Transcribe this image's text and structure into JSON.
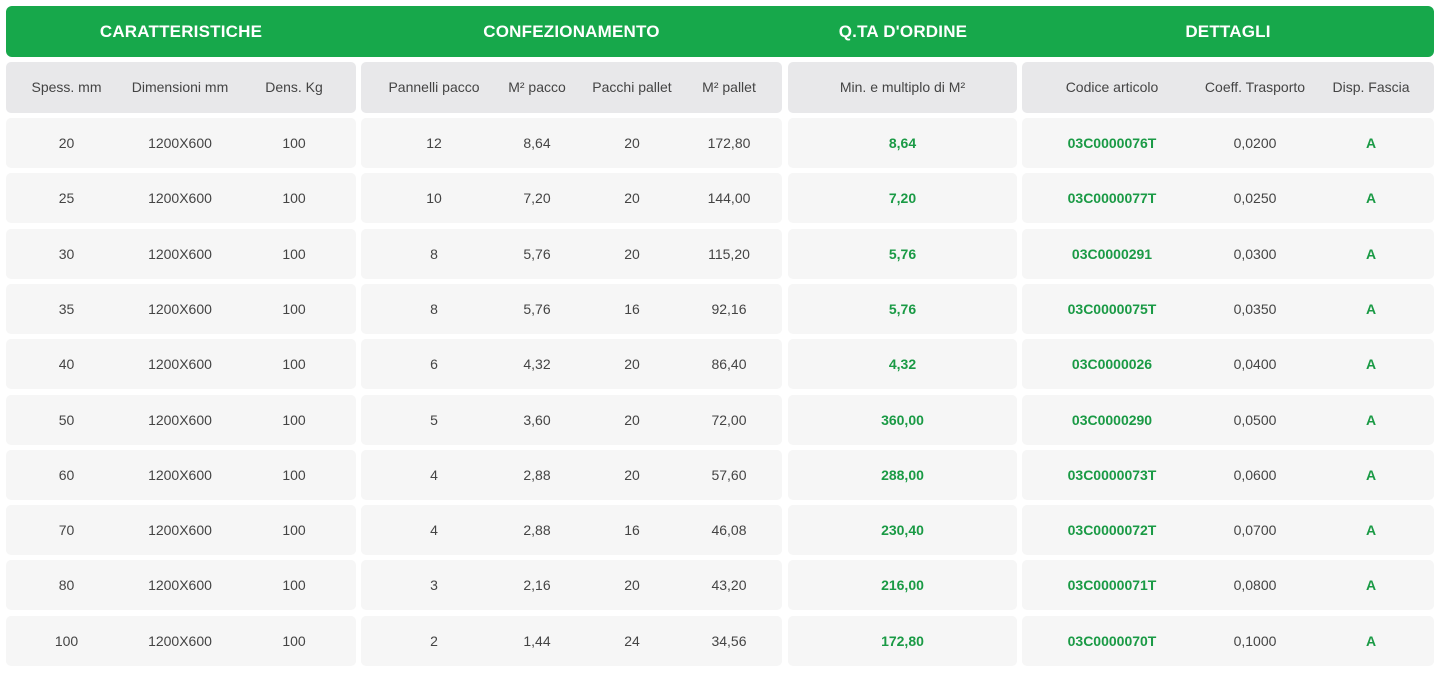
{
  "groups": {
    "caratteristiche": "CARATTERISTICHE",
    "confezionamento": "CONFEZIONAMENTO",
    "qta_ordine": "Q.TA D'ORDINE",
    "dettagli": "DETTAGLI"
  },
  "columns": {
    "spess": "Spess. mm",
    "dimensioni": "Dimensioni mm",
    "dens": "Dens. Kg",
    "pannelli": "Pannelli pacco",
    "m2_pacco": "M² pacco",
    "pacchi_pallet": "Pacchi pallet",
    "m2_pallet": "M² pallet",
    "min_multiplo": "Min. e multiplo di M²",
    "codice": "Codice articolo",
    "coeff": "Coeff. Trasporto",
    "disp": "Disp. Fascia"
  },
  "rows": [
    {
      "spess": "20",
      "dimensioni": "1200X600",
      "dens": "100",
      "pannelli": "12",
      "m2_pacco": "8,64",
      "pacchi_pallet": "20",
      "m2_pallet": "172,80",
      "min_multiplo": "8,64",
      "codice": "03C0000076T",
      "coeff": "0,0200",
      "disp": "A"
    },
    {
      "spess": "25",
      "dimensioni": "1200X600",
      "dens": "100",
      "pannelli": "10",
      "m2_pacco": "7,20",
      "pacchi_pallet": "20",
      "m2_pallet": "144,00",
      "min_multiplo": "7,20",
      "codice": "03C0000077T",
      "coeff": "0,0250",
      "disp": "A"
    },
    {
      "spess": "30",
      "dimensioni": "1200X600",
      "dens": "100",
      "pannelli": "8",
      "m2_pacco": "5,76",
      "pacchi_pallet": "20",
      "m2_pallet": "115,20",
      "min_multiplo": "5,76",
      "codice": "03C0000291",
      "coeff": "0,0300",
      "disp": "A"
    },
    {
      "spess": "35",
      "dimensioni": "1200X600",
      "dens": "100",
      "pannelli": "8",
      "m2_pacco": "5,76",
      "pacchi_pallet": "16",
      "m2_pallet": "92,16",
      "min_multiplo": "5,76",
      "codice": "03C0000075T",
      "coeff": "0,0350",
      "disp": "A"
    },
    {
      "spess": "40",
      "dimensioni": "1200X600",
      "dens": "100",
      "pannelli": "6",
      "m2_pacco": "4,32",
      "pacchi_pallet": "20",
      "m2_pallet": "86,40",
      "min_multiplo": "4,32",
      "codice": "03C0000026",
      "coeff": "0,0400",
      "disp": "A"
    },
    {
      "spess": "50",
      "dimensioni": "1200X600",
      "dens": "100",
      "pannelli": "5",
      "m2_pacco": "3,60",
      "pacchi_pallet": "20",
      "m2_pallet": "72,00",
      "min_multiplo": "360,00",
      "codice": "03C0000290",
      "coeff": "0,0500",
      "disp": "A"
    },
    {
      "spess": "60",
      "dimensioni": "1200X600",
      "dens": "100",
      "pannelli": "4",
      "m2_pacco": "2,88",
      "pacchi_pallet": "20",
      "m2_pallet": "57,60",
      "min_multiplo": "288,00",
      "codice": "03C0000073T",
      "coeff": "0,0600",
      "disp": "A"
    },
    {
      "spess": "70",
      "dimensioni": "1200X600",
      "dens": "100",
      "pannelli": "4",
      "m2_pacco": "2,88",
      "pacchi_pallet": "16",
      "m2_pallet": "46,08",
      "min_multiplo": "230,40",
      "codice": "03C0000072T",
      "coeff": "0,0700",
      "disp": "A"
    },
    {
      "spess": "80",
      "dimensioni": "1200X600",
      "dens": "100",
      "pannelli": "3",
      "m2_pacco": "2,16",
      "pacchi_pallet": "20",
      "m2_pallet": "43,20",
      "min_multiplo": "216,00",
      "codice": "03C0000071T",
      "coeff": "0,0800",
      "disp": "A"
    },
    {
      "spess": "100",
      "dimensioni": "1200X600",
      "dens": "100",
      "pannelli": "2",
      "m2_pacco": "1,44",
      "pacchi_pallet": "24",
      "m2_pallet": "34,56",
      "min_multiplo": "172,80",
      "codice": "03C0000070T",
      "coeff": "0,1000",
      "disp": "A"
    }
  ],
  "colors": {
    "header_green": "#17a84b",
    "value_green": "#1a9a45",
    "subheader_bg": "#e8e8ea",
    "row_bg": "#f6f6f6"
  }
}
